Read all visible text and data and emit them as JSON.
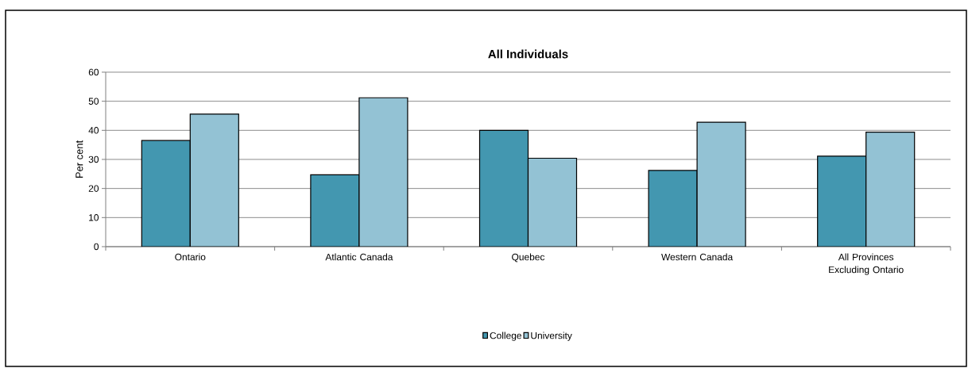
{
  "chart_data": {
    "type": "bar",
    "title": "All Individuals",
    "ylabel": "Per cent",
    "categories": [
      "Ontario",
      "Atlantic Canada",
      "Quebec",
      "Western Canada",
      "All Provinces Excluding Ontario"
    ],
    "series": [
      {
        "name": "College",
        "color": "#4397b0",
        "values": [
          36.5,
          24.7,
          40,
          26.2,
          31.1
        ]
      },
      {
        "name": "University",
        "color": "#93c2d4",
        "values": [
          45.6,
          51.2,
          30.4,
          42.8,
          39.4
        ]
      }
    ],
    "ylim": [
      0,
      60
    ],
    "yticks": [
      0,
      10,
      20,
      30,
      40,
      50,
      60
    ],
    "grid": "y",
    "legend": "bottom"
  }
}
